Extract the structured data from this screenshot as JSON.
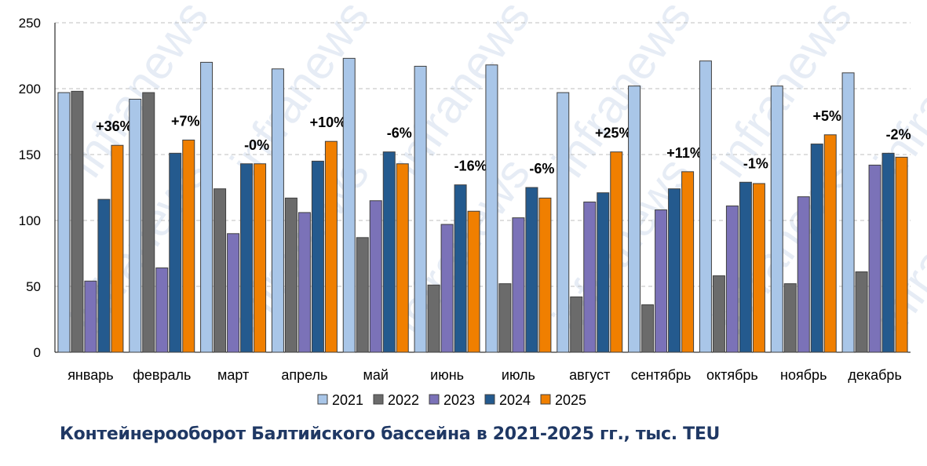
{
  "chart_data": {
    "type": "bar",
    "title": "Контейнерооборот Балтийского  бассейна в 2021-2025 гг., тыс. TEU",
    "xlabel": "",
    "ylabel": "",
    "ylim": [
      0,
      250
    ],
    "yticks": [
      0,
      50,
      100,
      150,
      200,
      250
    ],
    "grid": true,
    "legend_position": "bottom",
    "categories": [
      "январь",
      "февраль",
      "март",
      "апрель",
      "май",
      "июнь",
      "июль",
      "август",
      "сентябрь",
      "октябрь",
      "ноябрь",
      "декабрь"
    ],
    "series": [
      {
        "name": "2021",
        "color": "#a9c6e8",
        "values": [
          197,
          192,
          220,
          215,
          223,
          217,
          218,
          197,
          202,
          221,
          202,
          212
        ]
      },
      {
        "name": "2022",
        "color": "#6b6b6b",
        "values": [
          198,
          197,
          124,
          117,
          87,
          51,
          52,
          42,
          36,
          58,
          52,
          61
        ]
      },
      {
        "name": "2023",
        "color": "#7b72b8",
        "values": [
          54,
          64,
          90,
          106,
          115,
          97,
          102,
          114,
          108,
          111,
          118,
          142
        ]
      },
      {
        "name": "2024",
        "color": "#245a8e",
        "values": [
          116,
          151,
          143,
          145,
          152,
          127,
          125,
          121,
          124,
          129,
          158,
          151
        ]
      },
      {
        "name": "2025",
        "color": "#f07f00",
        "values": [
          157,
          161,
          143,
          160,
          143,
          107,
          117,
          152,
          137,
          128,
          165,
          148
        ]
      }
    ],
    "annotations": [
      "+36%",
      "+7%",
      "-0%",
      "+10%",
      "-6%",
      "-16%",
      "-6%",
      "+25%",
      "+11%",
      "-1%",
      "+5%",
      "-2%"
    ],
    "watermark": "infranews"
  }
}
